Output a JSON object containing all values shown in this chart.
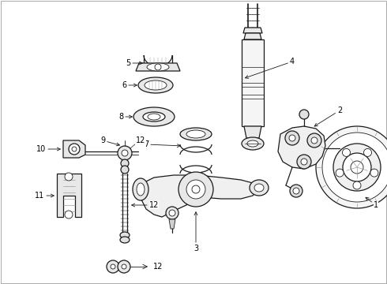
{
  "background_color": "#ffffff",
  "line_color": "#1a1a1a",
  "label_color": "#000000",
  "fig_width": 4.9,
  "fig_height": 3.6,
  "dpi": 100,
  "border_color": "#aaaaaa",
  "fill_light": "#e8e8e8",
  "fill_medium": "#d0d0d0"
}
